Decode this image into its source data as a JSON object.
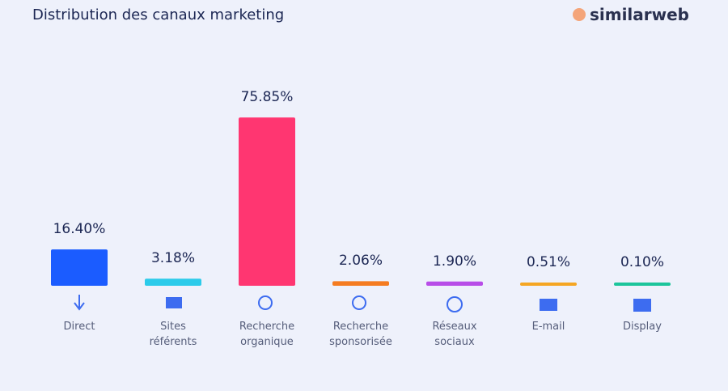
{
  "chart_data": {
    "type": "bar",
    "title": "Distribution des canaux marketing",
    "logo": "similarweb",
    "categories": [
      "Direct",
      "Sites référents",
      "Recherche organique",
      "Recherche sponsorisée",
      "Réseaux sociaux",
      "E-mail",
      "Display"
    ],
    "values": [
      16.4,
      3.18,
      75.85,
      2.06,
      1.9,
      0.51,
      0.1
    ],
    "value_labels": [
      "16.40%",
      "3.18%",
      "75.85%",
      "2.06%",
      "1.90%",
      "0.51%",
      "0.10%"
    ],
    "colors": [
      "#1b5cff",
      "#2ccbea",
      "#ff3671",
      "#f57c21",
      "#b84de8",
      "#f5a623",
      "#1cc59b"
    ]
  }
}
